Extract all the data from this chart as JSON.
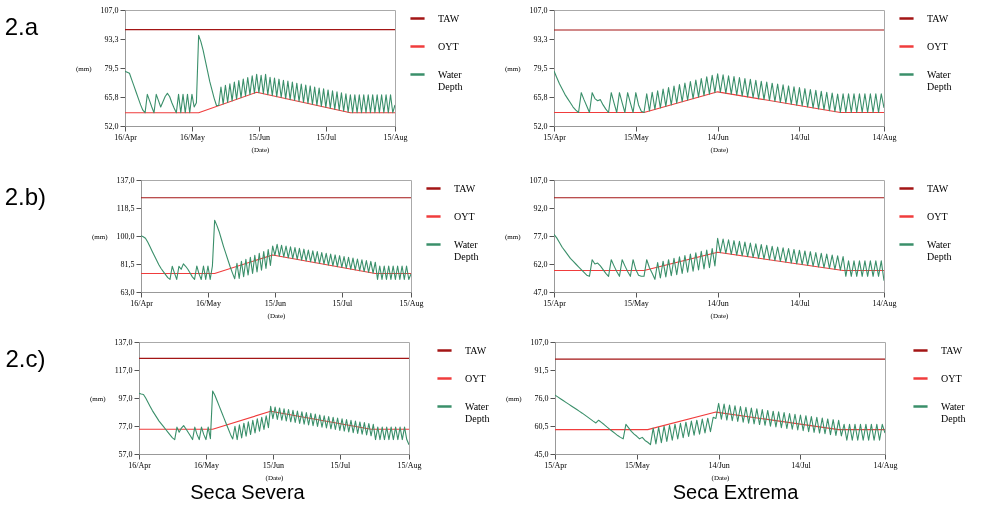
{
  "chart_data": [
    {
      "type": "line",
      "title": "2.a",
      "xlabel": "(Date)",
      "ylabel": "(mm)",
      "legend": "right",
      "xlim": [
        "--04-16",
        "--08-15"
      ],
      "xticks": [
        {
          "value": "--04-16",
          "label": "16/Apr"
        },
        {
          "value": "--05-16",
          "label": "16/May"
        },
        {
          "value": "--06-15",
          "label": "15/Jun"
        },
        {
          "value": "--07-15",
          "label": "15/Jul"
        },
        {
          "value": "--08-15",
          "label": "15/Aug"
        }
      ],
      "ylim": [
        52,
        107
      ],
      "yticks": [
        {
          "value": 52,
          "label": "52,0"
        },
        {
          "value": 65.75,
          "label": "65,8"
        },
        {
          "value": 79.5,
          "label": "79,5"
        },
        {
          "value": 93.25,
          "label": "93,3"
        },
        {
          "value": 107,
          "label": "107,0"
        }
      ],
      "x": [
        "--04-16",
        "--04-17",
        "--04-18",
        "--04-19",
        "--04-20",
        "--04-21",
        "--04-22",
        "--04-23",
        "--04-24",
        "--04-25",
        "--04-26",
        "--04-27",
        "--04-28",
        "--04-29",
        "--04-30",
        "--05-01",
        "--05-02",
        "--05-03",
        "--05-04",
        "--05-05",
        "--05-06",
        "--05-07",
        "--05-08",
        "--05-09",
        "--05-10",
        "--05-11",
        "--05-12",
        "--05-13",
        "--05-14",
        "--05-15",
        "--05-16",
        "--05-17",
        "--05-18",
        "--05-19",
        "--05-20",
        "--05-21",
        "--05-22",
        "--05-23",
        "--05-24",
        "--05-25",
        "--05-26",
        "--05-27",
        "--05-28",
        "--05-29",
        "--05-30",
        "--05-31",
        "--06-01",
        "--06-02",
        "--06-03",
        "--06-04",
        "--06-05",
        "--06-06",
        "--06-07",
        "--06-08",
        "--06-09",
        "--06-10",
        "--06-11",
        "--06-12",
        "--06-13",
        "--06-14",
        "--06-15",
        "--06-16",
        "--06-17",
        "--06-18",
        "--06-19",
        "--06-20",
        "--06-21",
        "--06-22",
        "--06-23",
        "--06-24",
        "--06-25",
        "--06-26",
        "--06-27",
        "--06-28",
        "--06-29",
        "--06-30",
        "--07-01",
        "--07-02",
        "--07-03",
        "--07-04",
        "--07-05",
        "--07-06",
        "--07-07",
        "--07-08",
        "--07-09",
        "--07-10",
        "--07-11",
        "--07-12",
        "--07-13",
        "--07-14",
        "--07-15",
        "--07-16",
        "--07-17",
        "--07-18",
        "--07-19",
        "--07-20",
        "--07-21",
        "--07-22",
        "--07-23",
        "--07-24",
        "--07-25",
        "--07-26",
        "--07-27",
        "--07-28",
        "--07-29",
        "--07-30",
        "--07-31",
        "--08-01",
        "--08-02",
        "--08-03",
        "--08-04",
        "--08-05",
        "--08-06",
        "--08-07",
        "--08-08",
        "--08-09",
        "--08-10",
        "--08-11",
        "--08-12",
        "--08-13",
        "--08-14",
        "--08-15"
      ],
      "series": [
        {
          "name": "TAW",
          "color": "#a31515",
          "x": [
            "--04-16",
            "--08-15"
          ],
          "values": [
            97.7,
            97.7
          ]
        },
        {
          "name": "OYT",
          "color": "#f03c3c",
          "x": [
            "--04-16",
            "--05-19",
            "--06-14",
            "--07-26",
            "--08-15"
          ],
          "values": [
            58.3,
            58.3,
            68,
            58.3,
            58.3
          ]
        },
        {
          "name": "Water Depth",
          "color": "#3a8f6a",
          "values": [
            77.9,
            77.5,
            77,
            74,
            71,
            68,
            65,
            62,
            59.5,
            58.3,
            67,
            64,
            61,
            58.3,
            67,
            64,
            61,
            63.5,
            66,
            67.5,
            66,
            63,
            60.5,
            58.3,
            67,
            58.3,
            67,
            58.3,
            67,
            58.3,
            67,
            61,
            63,
            95,
            92,
            88,
            83,
            78,
            73,
            69,
            65,
            61.7,
            61.7,
            70.5,
            62.4,
            71.3,
            63.2,
            72.0,
            63.9,
            72.8,
            64.7,
            73.5,
            65.4,
            74.3,
            66.2,
            75.0,
            66.9,
            75.8,
            67.6,
            76.5,
            67.8,
            76.0,
            67.3,
            76.5,
            66.8,
            75.1,
            66.4,
            74.7,
            65.9,
            74.2,
            65.5,
            73.7,
            65.0,
            73.3,
            64.5,
            72.8,
            64.1,
            72.3,
            63.6,
            71.9,
            63.2,
            71.4,
            62.7,
            71.0,
            62.2,
            70.5,
            61.8,
            70.0,
            61.3,
            69.6,
            60.8,
            69.1,
            60.4,
            68.7,
            59.9,
            68.2,
            59.5,
            67.7,
            59.0,
            67.3,
            58.5,
            66.8,
            58.3,
            66.8,
            58.3,
            66.8,
            58.3,
            66.8,
            58.3,
            66.8,
            58.3,
            66.8,
            58.3,
            66.8,
            58.3,
            66.8,
            58.3,
            66.8,
            58.3,
            66.8,
            58.3,
            62
          ]
        }
      ]
    },
    {
      "type": "line",
      "xlabel": "(Date)",
      "ylabel": "(mm)",
      "legend": "right",
      "xlim": [
        "--04-15",
        "--08-14"
      ],
      "xticks": [
        {
          "value": "--04-15",
          "label": "15/Apr"
        },
        {
          "value": "--05-15",
          "label": "15/May"
        },
        {
          "value": "--06-14",
          "label": "14/Jun"
        },
        {
          "value": "--07-14",
          "label": "14/Jul"
        },
        {
          "value": "--08-14",
          "label": "14/Aug"
        }
      ],
      "ylim": [
        52,
        107
      ],
      "yticks": [
        {
          "value": 52,
          "label": "52,0"
        },
        {
          "value": 65.75,
          "label": "65,8"
        },
        {
          "value": 79.5,
          "label": "79,5"
        },
        {
          "value": 93.25,
          "label": "93,3"
        },
        {
          "value": 107,
          "label": "107,0"
        }
      ],
      "x": [
        "--04-15",
        "--04-16",
        "--04-17",
        "--04-18",
        "--04-19",
        "--04-20",
        "--04-21",
        "--04-22",
        "--04-23",
        "--04-24",
        "--04-25",
        "--04-26",
        "--04-27",
        "--04-28",
        "--04-29",
        "--04-30",
        "--05-01",
        "--05-02",
        "--05-03",
        "--05-04",
        "--05-05",
        "--05-06",
        "--05-07",
        "--05-08",
        "--05-09",
        "--05-10",
        "--05-11",
        "--05-12",
        "--05-13",
        "--05-14",
        "--05-15",
        "--05-16",
        "--05-17",
        "--05-18",
        "--05-19",
        "--05-20",
        "--05-21",
        "--05-22",
        "--05-23",
        "--05-24",
        "--05-25",
        "--05-26",
        "--05-27",
        "--05-28",
        "--05-29",
        "--05-30",
        "--05-31",
        "--06-01",
        "--06-02",
        "--06-03",
        "--06-04",
        "--06-05",
        "--06-06",
        "--06-07",
        "--06-08",
        "--06-09",
        "--06-10",
        "--06-11",
        "--06-12",
        "--06-13",
        "--06-14",
        "--06-15",
        "--06-16",
        "--06-17",
        "--06-18",
        "--06-19",
        "--06-20",
        "--06-21",
        "--06-22",
        "--06-23",
        "--06-24",
        "--06-25",
        "--06-26",
        "--06-27",
        "--06-28",
        "--06-29",
        "--06-30",
        "--07-01",
        "--07-02",
        "--07-03",
        "--07-04",
        "--07-05",
        "--07-06",
        "--07-07",
        "--07-08",
        "--07-09",
        "--07-10",
        "--07-11",
        "--07-12",
        "--07-13",
        "--07-14",
        "--07-15",
        "--07-16",
        "--07-17",
        "--07-18",
        "--07-19",
        "--07-20",
        "--07-21",
        "--07-22",
        "--07-23",
        "--07-24",
        "--07-25",
        "--07-26",
        "--07-27",
        "--07-28",
        "--07-29",
        "--07-30",
        "--07-31",
        "--08-01",
        "--08-02",
        "--08-03",
        "--08-04",
        "--08-05",
        "--08-06",
        "--08-07",
        "--08-08",
        "--08-09",
        "--08-10",
        "--08-11",
        "--08-12",
        "--08-13",
        "--08-14"
      ],
      "series": [
        {
          "name": "TAW",
          "color": "#a31515",
          "x": [
            "--04-15",
            "--08-14"
          ],
          "values": [
            97.5,
            97.5
          ]
        },
        {
          "name": "OYT",
          "color": "#f03c3c",
          "x": [
            "--04-15",
            "--05-18",
            "--06-14",
            "--07-29",
            "--08-14"
          ],
          "values": [
            58.4,
            58.4,
            68.2,
            58.4,
            58.4
          ]
        },
        {
          "name": "Water Depth",
          "color": "#3a8f6a",
          "values": [
            78.1,
            75,
            72,
            69.5,
            67,
            65,
            63,
            61,
            59.5,
            58.4,
            67.8,
            64.5,
            61.5,
            58.4,
            67.8,
            65,
            64,
            64.5,
            62,
            60,
            58.4,
            67.8,
            63,
            58.4,
            67.8,
            63,
            58.4,
            67.8,
            63,
            58.4,
            67.8,
            62,
            59,
            58.4,
            67.3,
            59.1,
            68.0,
            59.9,
            68.7,
            60.6,
            69.5,
            61.3,
            70.2,
            62.0,
            70.9,
            62.8,
            71.6,
            63.5,
            72.4,
            64.2,
            73.1,
            65.0,
            73.8,
            65.7,
            74.5,
            66.4,
            75.3,
            67.1,
            76.0,
            67.8,
            76.7,
            68.0,
            76.3,
            67.5,
            75.8,
            67.1,
            75.4,
            66.7,
            75.0,
            66.2,
            74.5,
            65.8,
            74.1,
            65.4,
            73.7,
            64.9,
            73.2,
            64.5,
            72.8,
            64.1,
            72.3,
            63.6,
            71.9,
            63.2,
            71.5,
            62.8,
            71.0,
            62.3,
            70.6,
            61.9,
            70.2,
            61.5,
            69.7,
            61.0,
            69.3,
            60.6,
            68.9,
            60.1,
            68.4,
            59.7,
            68.0,
            59.3,
            67.6,
            58.8,
            67.1,
            58.4,
            67.3,
            58.4,
            67.3,
            58.4,
            67.3,
            58.4,
            67.3,
            58.4,
            67.3,
            58.4,
            67.3,
            58.4,
            67.3,
            58.4,
            67.3,
            60.6
          ]
        }
      ]
    },
    {
      "type": "line",
      "title": "2.b)",
      "xlabel": "(Date)",
      "ylabel": "(mm)",
      "legend": "right",
      "xlim": [
        "--04-16",
        "--08-15"
      ],
      "xticks": [
        {
          "value": "--04-16",
          "label": "16/Apr"
        },
        {
          "value": "--05-16",
          "label": "16/May"
        },
        {
          "value": "--06-15",
          "label": "15/Jun"
        },
        {
          "value": "--07-15",
          "label": "15/Jul"
        },
        {
          "value": "--08-15",
          "label": "15/Aug"
        }
      ],
      "ylim": [
        63,
        137
      ],
      "yticks": [
        {
          "value": 63,
          "label": "63,0"
        },
        {
          "value": 81.5,
          "label": "81,5"
        },
        {
          "value": 100,
          "label": "100,0"
        },
        {
          "value": 118.5,
          "label": "118,5"
        },
        {
          "value": 137,
          "label": "137,0"
        }
      ],
      "x": [
        "--04-16",
        "--04-17",
        "--04-18",
        "--04-19",
        "--04-20",
        "--04-21",
        "--04-22",
        "--04-23",
        "--04-24",
        "--04-25",
        "--04-26",
        "--04-27",
        "--04-28",
        "--04-29",
        "--04-30",
        "--05-01",
        "--05-02",
        "--05-03",
        "--05-04",
        "--05-05",
        "--05-06",
        "--05-07",
        "--05-08",
        "--05-09",
        "--05-10",
        "--05-11",
        "--05-12",
        "--05-13",
        "--05-14",
        "--05-15",
        "--05-16",
        "--05-17",
        "--05-18",
        "--05-19",
        "--05-20",
        "--05-21",
        "--05-22",
        "--05-23",
        "--05-24",
        "--05-25",
        "--05-26",
        "--05-27",
        "--05-28",
        "--05-29",
        "--05-30",
        "--05-31",
        "--06-01",
        "--06-02",
        "--06-03",
        "--06-04",
        "--06-05",
        "--06-06",
        "--06-07",
        "--06-08",
        "--06-09",
        "--06-10",
        "--06-11",
        "--06-12",
        "--06-13",
        "--06-14",
        "--06-15",
        "--06-16",
        "--06-17",
        "--06-18",
        "--06-19",
        "--06-20",
        "--06-21",
        "--06-22",
        "--06-23",
        "--06-24",
        "--06-25",
        "--06-26",
        "--06-27",
        "--06-28",
        "--06-29",
        "--06-30",
        "--07-01",
        "--07-02",
        "--07-03",
        "--07-04",
        "--07-05",
        "--07-06",
        "--07-07",
        "--07-08",
        "--07-09",
        "--07-10",
        "--07-11",
        "--07-12",
        "--07-13",
        "--07-14",
        "--07-15",
        "--07-16",
        "--07-17",
        "--07-18",
        "--07-19",
        "--07-20",
        "--07-21",
        "--07-22",
        "--07-23",
        "--07-24",
        "--07-25",
        "--07-26",
        "--07-27",
        "--07-28",
        "--07-29",
        "--07-30",
        "--07-31",
        "--08-01",
        "--08-02",
        "--08-03",
        "--08-04",
        "--08-05",
        "--08-06",
        "--08-07",
        "--08-08",
        "--08-09",
        "--08-10",
        "--08-11",
        "--08-12",
        "--08-13",
        "--08-14",
        "--08-15"
      ],
      "series": [
        {
          "name": "TAW",
          "color": "#a31515",
          "x": [
            "--04-16",
            "--08-15"
          ],
          "values": [
            125.3,
            125.3
          ]
        },
        {
          "name": "OYT",
          "color": "#f03c3c",
          "x": [
            "--04-16",
            "--05-19",
            "--06-14",
            "--07-30",
            "--08-15"
          ],
          "values": [
            75.2,
            75.2,
            87.5,
            75.2,
            75.2
          ]
        },
        {
          "name": "Water Depth",
          "color": "#3a8f6a",
          "values": [
            100.2,
            99.5,
            98.5,
            96,
            93,
            90,
            87,
            84,
            81,
            78.5,
            76.5,
            74.5,
            72.5,
            71.3,
            80,
            75.5,
            71.3,
            80,
            78,
            81.6,
            80,
            78,
            75.5,
            73,
            71.3,
            80.2,
            75,
            71.3,
            80.2,
            71.3,
            80.2,
            71.3,
            80.2,
            110.4,
            107,
            103,
            98,
            93,
            88.5,
            84,
            79.5,
            75.5,
            71.8,
            82.0,
            72.0,
            83.3,
            73.1,
            84.6,
            74.2,
            85.9,
            75.2,
            87.2,
            76.3,
            88.5,
            77.4,
            89.7,
            78.5,
            91.0,
            80.6,
            93.4,
            87.2,
            94.5,
            86.7,
            93.9,
            86.2,
            93.4,
            85.6,
            92.9,
            85.1,
            92.3,
            84.6,
            91.8,
            84.0,
            91.3,
            83.5,
            90.7,
            83.0,
            90.2,
            82.4,
            89.7,
            81.9,
            89.1,
            81.4,
            88.6,
            80.8,
            88.0,
            80.3,
            87.5,
            79.7,
            87.0,
            79.2,
            86.4,
            78.7,
            85.9,
            78.1,
            85.4,
            77.6,
            84.8,
            77.1,
            84.3,
            76.5,
            83.8,
            76.0,
            83.2,
            75.5,
            82.7,
            71.3,
            80.2,
            71.3,
            80.2,
            71.3,
            80.2,
            71.3,
            80.2,
            71.3,
            80.2,
            71.3,
            80.2,
            71.3,
            80.2,
            71.3,
            75
          ]
        }
      ]
    },
    {
      "type": "line",
      "xlabel": "(Date)",
      "ylabel": "(mm)",
      "legend": "right",
      "xlim": [
        "--04-15",
        "--08-14"
      ],
      "xticks": [
        {
          "value": "--04-15",
          "label": "15/Apr"
        },
        {
          "value": "--05-15",
          "label": "15/May"
        },
        {
          "value": "--06-14",
          "label": "14/Jun"
        },
        {
          "value": "--07-14",
          "label": "14/Jul"
        },
        {
          "value": "--08-14",
          "label": "14/Aug"
        }
      ],
      "ylim": [
        47,
        107
      ],
      "yticks": [
        {
          "value": 47,
          "label": "47,0"
        },
        {
          "value": 62,
          "label": "62,0"
        },
        {
          "value": 77,
          "label": "77,0"
        },
        {
          "value": 92,
          "label": "92,0"
        },
        {
          "value": 107,
          "label": "107,0"
        }
      ],
      "x": [
        "--04-15",
        "--04-16",
        "--04-17",
        "--04-18",
        "--04-19",
        "--04-20",
        "--04-21",
        "--04-22",
        "--04-23",
        "--04-24",
        "--04-25",
        "--04-26",
        "--04-27",
        "--04-28",
        "--04-29",
        "--04-30",
        "--05-01",
        "--05-02",
        "--05-03",
        "--05-04",
        "--05-05",
        "--05-06",
        "--05-07",
        "--05-08",
        "--05-09",
        "--05-10",
        "--05-11",
        "--05-12",
        "--05-13",
        "--05-14",
        "--05-15",
        "--05-16",
        "--05-17",
        "--05-18",
        "--05-19",
        "--05-20",
        "--05-21",
        "--05-22",
        "--05-23",
        "--05-24",
        "--05-25",
        "--05-26",
        "--05-27",
        "--05-28",
        "--05-29",
        "--05-30",
        "--05-31",
        "--06-01",
        "--06-02",
        "--06-03",
        "--06-04",
        "--06-05",
        "--06-06",
        "--06-07",
        "--06-08",
        "--06-09",
        "--06-10",
        "--06-11",
        "--06-12",
        "--06-13",
        "--06-14",
        "--06-15",
        "--06-16",
        "--06-17",
        "--06-18",
        "--06-19",
        "--06-20",
        "--06-21",
        "--06-22",
        "--06-23",
        "--06-24",
        "--06-25",
        "--06-26",
        "--06-27",
        "--06-28",
        "--06-29",
        "--06-30",
        "--07-01",
        "--07-02",
        "--07-03",
        "--07-04",
        "--07-05",
        "--07-06",
        "--07-07",
        "--07-08",
        "--07-09",
        "--07-10",
        "--07-11",
        "--07-12",
        "--07-13",
        "--07-14",
        "--07-15",
        "--07-16",
        "--07-17",
        "--07-18",
        "--07-19",
        "--07-20",
        "--07-21",
        "--07-22",
        "--07-23",
        "--07-24",
        "--07-25",
        "--07-26",
        "--07-27",
        "--07-28",
        "--07-29",
        "--07-30",
        "--07-31",
        "--08-01",
        "--08-02",
        "--08-03",
        "--08-04",
        "--08-05",
        "--08-06",
        "--08-07",
        "--08-08",
        "--08-09",
        "--08-10",
        "--08-11",
        "--08-12",
        "--08-13",
        "--08-14"
      ],
      "series": [
        {
          "name": "TAW",
          "color": "#a31515",
          "x": [
            "--04-15",
            "--08-14"
          ],
          "values": [
            97.5,
            97.5
          ]
        },
        {
          "name": "OYT",
          "color": "#f03c3c",
          "x": [
            "--04-15",
            "--05-18",
            "--06-14",
            "--07-30",
            "--08-14"
          ],
          "values": [
            58.5,
            58.5,
            68.3,
            58.5,
            58.5
          ]
        },
        {
          "name": "Water Depth",
          "color": "#3a8f6a",
          "values": [
            77.9,
            76,
            73.5,
            71,
            69,
            67,
            65,
            63.5,
            62,
            60.5,
            59,
            57.5,
            56,
            55.4,
            64.3,
            62,
            62.5,
            61,
            59,
            57,
            55.4,
            64.3,
            61,
            58,
            55.4,
            64.3,
            61,
            58,
            55.4,
            64.3,
            59,
            56,
            55.4,
            55.4,
            64.3,
            60,
            57,
            53.8,
            62.8,
            54.5,
            63.5,
            55.1,
            64.3,
            55.7,
            65.0,
            56.3,
            65.8,
            57.0,
            66.5,
            57.6,
            67.3,
            58.2,
            68.0,
            58.8,
            68.8,
            59.4,
            69.5,
            60.0,
            70.3,
            61.0,
            75.8,
            68.1,
            75.4,
            67.7,
            75.0,
            67.2,
            74.5,
            66.8,
            74.1,
            66.4,
            73.7,
            66.0,
            73.2,
            65.5,
            72.8,
            65.1,
            72.4,
            64.7,
            72.0,
            64.3,
            71.5,
            63.8,
            71.1,
            63.4,
            70.7,
            63.0,
            70.3,
            62.5,
            69.8,
            62.1,
            69.4,
            61.7,
            69.0,
            61.3,
            68.6,
            60.8,
            68.1,
            60.4,
            67.7,
            60.0,
            67.3,
            59.6,
            66.8,
            59.1,
            66.4,
            58.7,
            66.0,
            55.4,
            63.7,
            55.4,
            63.7,
            55.4,
            63.7,
            55.4,
            63.7,
            55.4,
            63.7,
            55.4,
            63.7,
            55.4,
            63.7,
            53.0
          ]
        }
      ]
    },
    {
      "type": "line",
      "title": "2.c)",
      "xlabel": "(Date)",
      "ylabel": "(mm)",
      "legend": "right",
      "annotations": [
        "Seca Severa"
      ],
      "xlim": [
        "--04-16",
        "--08-15"
      ],
      "xticks": [
        {
          "value": "--04-16",
          "label": "16/Apr"
        },
        {
          "value": "--05-16",
          "label": "16/May"
        },
        {
          "value": "--06-15",
          "label": "15/Jun"
        },
        {
          "value": "--07-15",
          "label": "15/Jul"
        },
        {
          "value": "--08-15",
          "label": "15/Aug"
        }
      ],
      "ylim": [
        57,
        137
      ],
      "yticks": [
        {
          "value": 57,
          "label": "57,0"
        },
        {
          "value": 77,
          "label": "77,0"
        },
        {
          "value": 97,
          "label": "97,0"
        },
        {
          "value": 117,
          "label": "117,0"
        },
        {
          "value": 137,
          "label": "137,0"
        }
      ],
      "x": [
        "--04-16",
        "--04-17",
        "--04-18",
        "--04-19",
        "--04-20",
        "--04-21",
        "--04-22",
        "--04-23",
        "--04-24",
        "--04-25",
        "--04-26",
        "--04-27",
        "--04-28",
        "--04-29",
        "--04-30",
        "--05-01",
        "--05-02",
        "--05-03",
        "--05-04",
        "--05-05",
        "--05-06",
        "--05-07",
        "--05-08",
        "--05-09",
        "--05-10",
        "--05-11",
        "--05-12",
        "--05-13",
        "--05-14",
        "--05-15",
        "--05-16",
        "--05-17",
        "--05-18",
        "--05-19",
        "--05-20",
        "--05-21",
        "--05-22",
        "--05-23",
        "--05-24",
        "--05-25",
        "--05-26",
        "--05-27",
        "--05-28",
        "--05-29",
        "--05-30",
        "--05-31",
        "--06-01",
        "--06-02",
        "--06-03",
        "--06-04",
        "--06-05",
        "--06-06",
        "--06-07",
        "--06-08",
        "--06-09",
        "--06-10",
        "--06-11",
        "--06-12",
        "--06-13",
        "--06-14",
        "--06-15",
        "--06-16",
        "--06-17",
        "--06-18",
        "--06-19",
        "--06-20",
        "--06-21",
        "--06-22",
        "--06-23",
        "--06-24",
        "--06-25",
        "--06-26",
        "--06-27",
        "--06-28",
        "--06-29",
        "--06-30",
        "--07-01",
        "--07-02",
        "--07-03",
        "--07-04",
        "--07-05",
        "--07-06",
        "--07-07",
        "--07-08",
        "--07-09",
        "--07-10",
        "--07-11",
        "--07-12",
        "--07-13",
        "--07-14",
        "--07-15",
        "--07-16",
        "--07-17",
        "--07-18",
        "--07-19",
        "--07-20",
        "--07-21",
        "--07-22",
        "--07-23",
        "--07-24",
        "--07-25",
        "--07-26",
        "--07-27",
        "--07-28",
        "--07-29",
        "--07-30",
        "--07-31",
        "--08-01",
        "--08-02",
        "--08-03",
        "--08-04",
        "--08-05",
        "--08-06",
        "--08-07",
        "--08-08",
        "--08-09",
        "--08-10",
        "--08-11",
        "--08-12",
        "--08-13",
        "--08-14",
        "--08-15"
      ],
      "series": [
        {
          "name": "TAW",
          "color": "#a31515",
          "x": [
            "--04-16",
            "--08-15"
          ],
          "values": [
            125.3,
            125.3
          ]
        },
        {
          "name": "OYT",
          "color": "#f03c3c",
          "x": [
            "--04-16",
            "--05-19",
            "--06-14",
            "--07-29",
            "--08-15"
          ],
          "values": [
            74.7,
            74.7,
            87.5,
            74.7,
            74.7
          ]
        },
        {
          "name": "Water Depth",
          "color": "#3a8f6a",
          "values": [
            100.3,
            99.8,
            99.5,
            97,
            94,
            91,
            88,
            85.5,
            83,
            80.5,
            78.5,
            76.5,
            74.5,
            72.5,
            70.5,
            68.5,
            67.3,
            76.2,
            72.6,
            75.5,
            77.3,
            75,
            72.5,
            70,
            67.3,
            76.2,
            71,
            67.3,
            76.2,
            71,
            67.3,
            76.2,
            68,
            102,
            99,
            95,
            91,
            87,
            83,
            79,
            75,
            71,
            67.7,
            76.8,
            67.3,
            77.9,
            68.5,
            79.0,
            69.7,
            80.0,
            70.9,
            81.1,
            72.1,
            82.2,
            73.3,
            83.2,
            74.5,
            84.3,
            75.8,
            91.0,
            82.2,
            90.5,
            81.7,
            89.9,
            81.1,
            89.3,
            80.6,
            88.8,
            80.0,
            88.2,
            79.5,
            87.7,
            78.9,
            87.1,
            78.3,
            86.6,
            77.8,
            86.0,
            77.2,
            85.5,
            76.7,
            84.9,
            76.1,
            84.3,
            75.6,
            83.8,
            75.0,
            83.2,
            74.5,
            82.7,
            73.9,
            82.1,
            73.4,
            81.6,
            72.8,
            81.0,
            72.2,
            80.5,
            71.7,
            79.9,
            71.1,
            79.4,
            70.6,
            78.8,
            70.0,
            78.2,
            67.3,
            76.2,
            67.3,
            76.2,
            67.3,
            76.2,
            67.3,
            76.2,
            67.3,
            76.2,
            67.3,
            76.2,
            67.3,
            76.2,
            67.3,
            63.6
          ]
        }
      ]
    },
    {
      "type": "line",
      "xlabel": "(Date)",
      "ylabel": "(mm)",
      "legend": "right",
      "annotations": [
        "Seca Extrema"
      ],
      "xlim": [
        "--04-15",
        "--08-14"
      ],
      "xticks": [
        {
          "value": "--04-15",
          "label": "15/Apr"
        },
        {
          "value": "--05-15",
          "label": "15/May"
        },
        {
          "value": "--06-14",
          "label": "14/Jun"
        },
        {
          "value": "--07-14",
          "label": "14/Jul"
        },
        {
          "value": "--08-14",
          "label": "14/Aug"
        }
      ],
      "ylim": [
        45,
        107
      ],
      "yticks": [
        {
          "value": 45,
          "label": "45,0"
        },
        {
          "value": 60.5,
          "label": "60,5"
        },
        {
          "value": 76,
          "label": "76,0"
        },
        {
          "value": 91.5,
          "label": "91,5"
        },
        {
          "value": 107,
          "label": "107,0"
        }
      ],
      "x": [
        "--04-15",
        "--04-16",
        "--04-17",
        "--04-18",
        "--04-19",
        "--04-20",
        "--04-21",
        "--04-22",
        "--04-23",
        "--04-24",
        "--04-25",
        "--04-26",
        "--04-27",
        "--04-28",
        "--04-29",
        "--04-30",
        "--05-01",
        "--05-02",
        "--05-03",
        "--05-04",
        "--05-05",
        "--05-06",
        "--05-07",
        "--05-08",
        "--05-09",
        "--05-10",
        "--05-11",
        "--05-12",
        "--05-13",
        "--05-14",
        "--05-15",
        "--05-16",
        "--05-17",
        "--05-18",
        "--05-19",
        "--05-20",
        "--05-21",
        "--05-22",
        "--05-23",
        "--05-24",
        "--05-25",
        "--05-26",
        "--05-27",
        "--05-28",
        "--05-29",
        "--05-30",
        "--05-31",
        "--06-01",
        "--06-02",
        "--06-03",
        "--06-04",
        "--06-05",
        "--06-06",
        "--06-07",
        "--06-08",
        "--06-09",
        "--06-10",
        "--06-11",
        "--06-12",
        "--06-13",
        "--06-14",
        "--06-15",
        "--06-16",
        "--06-17",
        "--06-18",
        "--06-19",
        "--06-20",
        "--06-21",
        "--06-22",
        "--06-23",
        "--06-24",
        "--06-25",
        "--06-26",
        "--06-27",
        "--06-28",
        "--06-29",
        "--06-30",
        "--07-01",
        "--07-02",
        "--07-03",
        "--07-04",
        "--07-05",
        "--07-06",
        "--07-07",
        "--07-08",
        "--07-09",
        "--07-10",
        "--07-11",
        "--07-12",
        "--07-13",
        "--07-14",
        "--07-15",
        "--07-16",
        "--07-17",
        "--07-18",
        "--07-19",
        "--07-20",
        "--07-21",
        "--07-22",
        "--07-23",
        "--07-24",
        "--07-25",
        "--07-26",
        "--07-27",
        "--07-28",
        "--07-29",
        "--07-30",
        "--07-31",
        "--08-01",
        "--08-02",
        "--08-03",
        "--08-04",
        "--08-05",
        "--08-06",
        "--08-07",
        "--08-08",
        "--08-09",
        "--08-10",
        "--08-11",
        "--08-12",
        "--08-13",
        "--08-14"
      ],
      "series": [
        {
          "name": "TAW",
          "color": "#a31515",
          "x": [
            "--04-15",
            "--08-14"
          ],
          "values": [
            97.5,
            97.5
          ]
        },
        {
          "name": "OYT",
          "color": "#f03c3c",
          "x": [
            "--04-15",
            "--05-19",
            "--06-13",
            "--07-28",
            "--08-14"
          ],
          "values": [
            58.5,
            58.5,
            68.2,
            58.5,
            58.5
          ]
        },
        {
          "name": "Water Depth",
          "color": "#3a8f6a",
          "values": [
            77.6,
            76.6,
            75.6,
            74.6,
            73.6,
            72.6,
            71.6,
            70.6,
            69.6,
            68.6,
            67.6,
            66.5,
            65.4,
            64.3,
            63.2,
            62.2,
            63.7,
            62.5,
            61.3,
            60,
            58.8,
            57.6,
            56.4,
            55.2,
            54.2,
            53.4,
            61.4,
            59.5,
            57.5,
            56,
            54.8,
            53.4,
            54.2,
            52.5,
            51.5,
            50.2,
            59.3,
            50.6,
            59.8,
            51.3,
            60.4,
            52.0,
            60.9,
            52.6,
            61.5,
            53.3,
            62.0,
            54.0,
            62.6,
            54.7,
            63.2,
            55.4,
            63.7,
            56.0,
            64.3,
            56.7,
            64.8,
            57.4,
            65.3,
            64.7,
            73.0,
            64.3,
            72.6,
            63.8,
            72.1,
            63.4,
            71.7,
            63.0,
            71.3,
            62.6,
            70.8,
            62.1,
            70.4,
            61.7,
            70.0,
            61.3,
            69.6,
            60.9,
            69.1,
            60.4,
            68.7,
            60.0,
            68.3,
            59.6,
            67.9,
            59.1,
            67.4,
            58.7,
            67.0,
            58.3,
            66.6,
            57.9,
            66.2,
            57.4,
            65.7,
            57.0,
            65.3,
            56.6,
            64.9,
            56.2,
            64.4,
            55.7,
            64.0,
            55.3,
            63.6,
            55.0,
            61.4,
            52.6,
            61.4,
            52.6,
            61.4,
            52.6,
            61.4,
            52.6,
            61.4,
            52.6,
            61.4,
            52.6,
            61.4,
            52.6,
            61.4,
            56.6
          ]
        }
      ]
    }
  ]
}
